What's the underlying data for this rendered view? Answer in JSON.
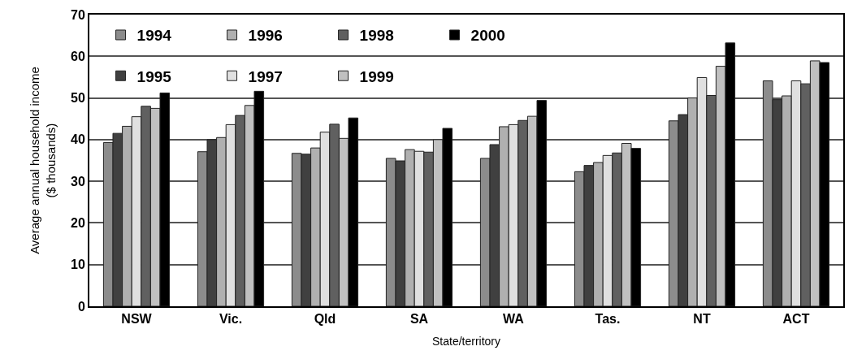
{
  "chart_data": {
    "type": "bar",
    "xlabel": "State/territory",
    "ylabel": "Average annual household income\n($ thousands)",
    "categories": [
      "NSW",
      "Vic.",
      "Qld",
      "SA",
      "WA",
      "Tas.",
      "NT",
      "ACT"
    ],
    "series": [
      {
        "name": "1994",
        "color": "#8c8c8c",
        "values": [
          39.3,
          37.1,
          36.7,
          35.5,
          35.5,
          32.3,
          44.5,
          54.1
        ]
      },
      {
        "name": "1995",
        "color": "#404040",
        "values": [
          41.5,
          40.0,
          36.5,
          34.9,
          38.8,
          33.8,
          46.0,
          49.6
        ]
      },
      {
        "name": "1996",
        "color": "#b0b0b0",
        "values": [
          43.2,
          40.5,
          38.0,
          37.6,
          43.1,
          34.5,
          50.0,
          50.5
        ]
      },
      {
        "name": "1997",
        "color": "#e0e0e0",
        "values": [
          45.5,
          43.6,
          41.8,
          37.2,
          43.6,
          36.2,
          54.9,
          54.1
        ]
      },
      {
        "name": "1998",
        "color": "#606060",
        "values": [
          48.0,
          45.8,
          43.7,
          37.0,
          44.6,
          36.8,
          50.6,
          53.4
        ]
      },
      {
        "name": "1999",
        "color": "#c0c0c0",
        "values": [
          47.5,
          48.2,
          40.3,
          40.0,
          45.6,
          39.1,
          57.6,
          58.9
        ]
      },
      {
        "name": "2000",
        "color": "#000000",
        "values": [
          51.2,
          51.6,
          45.2,
          42.7,
          49.4,
          37.9,
          63.2,
          58.5
        ]
      }
    ],
    "ylim": [
      0,
      70
    ],
    "yticks": [
      0,
      10,
      20,
      30,
      40,
      50,
      60,
      70
    ],
    "grid": "y",
    "legend": "top left"
  }
}
